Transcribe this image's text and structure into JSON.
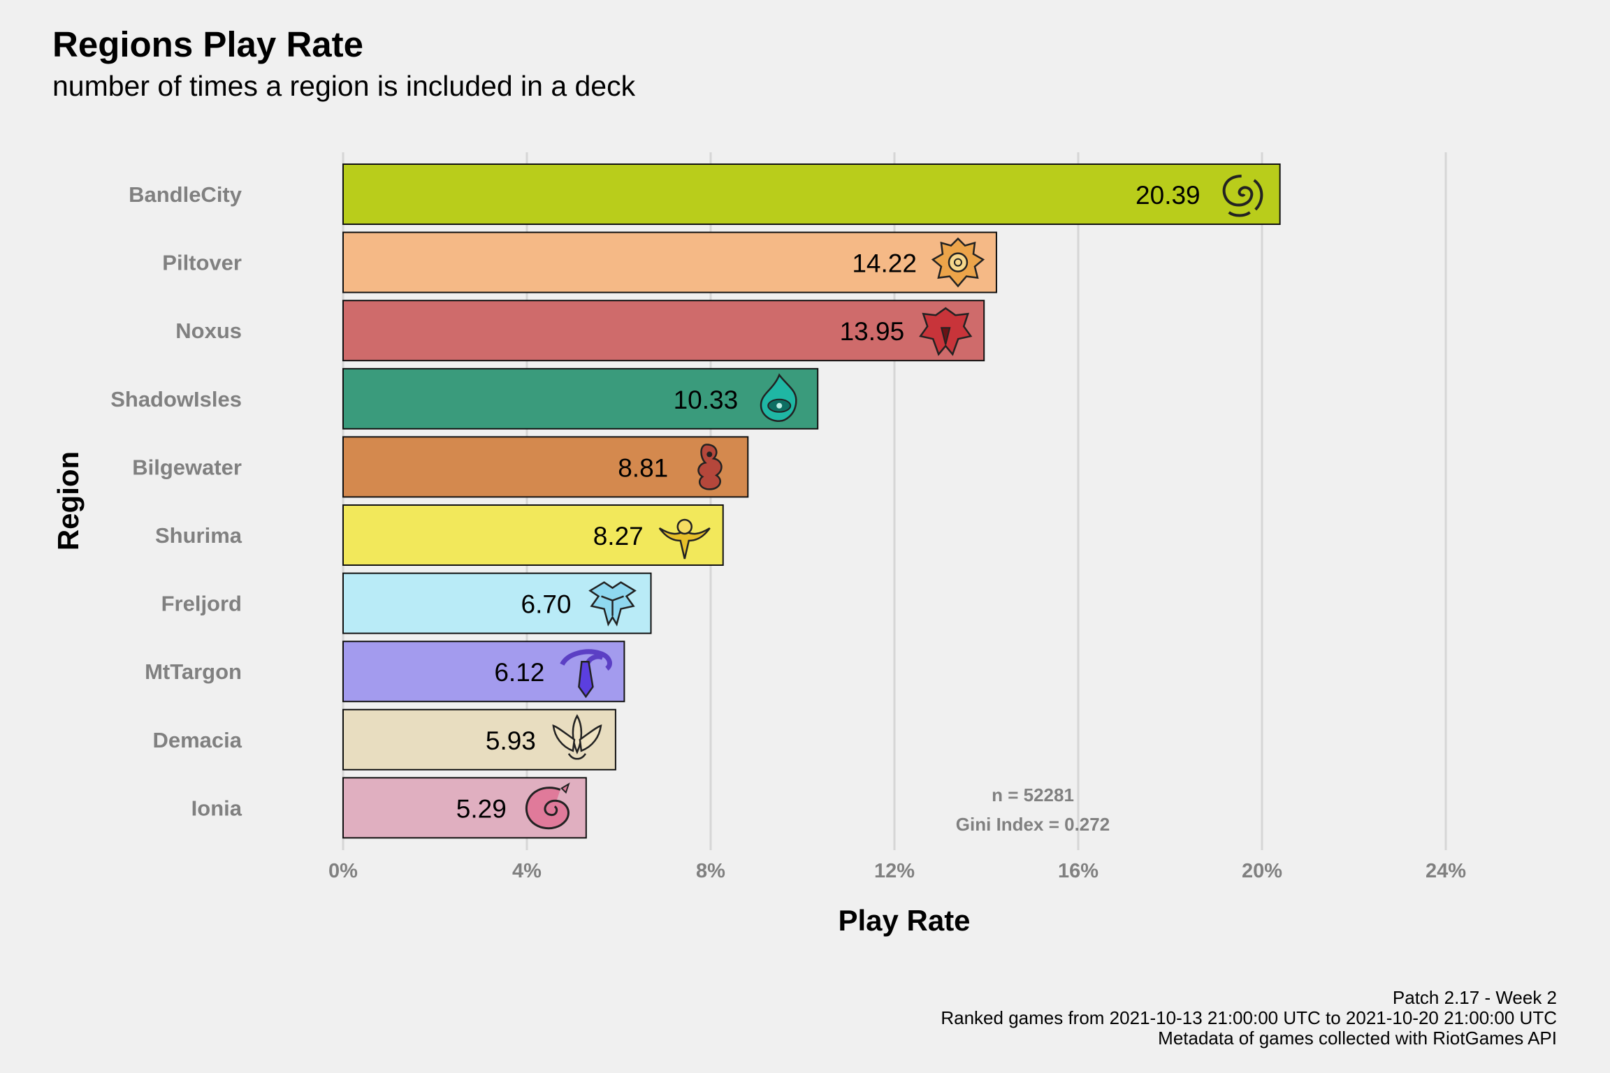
{
  "chart_data": {
    "type": "bar",
    "orientation": "horizontal",
    "title": "Regions Play Rate",
    "subtitle": "number of times a region is included in a deck",
    "xlabel": "Play Rate",
    "ylabel": "Region",
    "xlim": [
      0,
      24
    ],
    "x_ticks": [
      "0%",
      "4%",
      "8%",
      "12%",
      "16%",
      "20%",
      "24%"
    ],
    "grid": "vertical major",
    "categories": [
      "BandleCity",
      "Piltover",
      "Noxus",
      "ShadowIsles",
      "Bilgewater",
      "Shurima",
      "Freljord",
      "MtTargon",
      "Demacia",
      "Ionia"
    ],
    "values": [
      20.39,
      14.22,
      13.95,
      10.33,
      8.81,
      8.27,
      6.7,
      6.12,
      5.93,
      5.29
    ],
    "value_labels": [
      "20.39",
      "14.22",
      "13.95",
      "10.33",
      "8.81",
      "8.27",
      "6.70",
      "6.12",
      "5.93",
      "5.29"
    ],
    "colors": [
      "#b9cd1b",
      "#f5b986",
      "#cf6b6b",
      "#3a9b7c",
      "#d4894e",
      "#f2e85b",
      "#b9ebf7",
      "#a39bee",
      "#e8ddc0",
      "#e0afc0"
    ],
    "icons": [
      "bandlecity-icon",
      "piltover-icon",
      "noxus-icon",
      "shadowisles-icon",
      "bilgewater-icon",
      "shurima-icon",
      "freljord-icon",
      "mttargon-icon",
      "demacia-icon",
      "ionia-icon"
    ],
    "annotations": [
      "n = 52281",
      "Gini Index = 0.272"
    ]
  },
  "caption": {
    "line1": "Patch 2.17 - Week 2",
    "line2": "Ranked games from 2021-10-13 21:00:00 UTC to 2021-10-20 21:00:00 UTC",
    "line3": "Metadata of games collected with RiotGames API"
  }
}
